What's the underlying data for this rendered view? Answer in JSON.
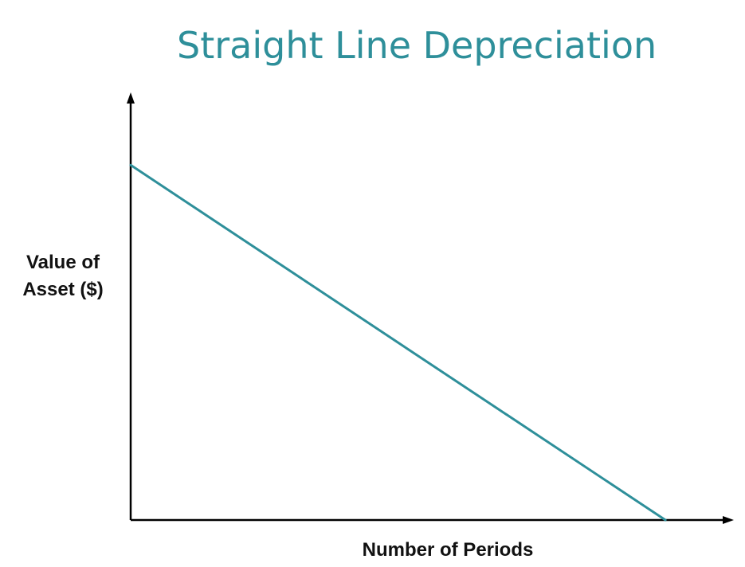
{
  "chart_data": {
    "type": "line",
    "title": "Straight Line Depreciation",
    "xlabel": "Number of Periods",
    "ylabel_lines": [
      "Value of",
      "Asset ($)"
    ],
    "tick_labels": false,
    "grid": false,
    "legend": "none",
    "xlim": [
      0,
      1
    ],
    "ylim": [
      0,
      1
    ],
    "series": [
      {
        "x": [
          0,
          0.89
        ],
        "y": [
          0.83,
          0
        ],
        "color": "#2e8f9a"
      }
    ],
    "axis_color": "#000000"
  }
}
